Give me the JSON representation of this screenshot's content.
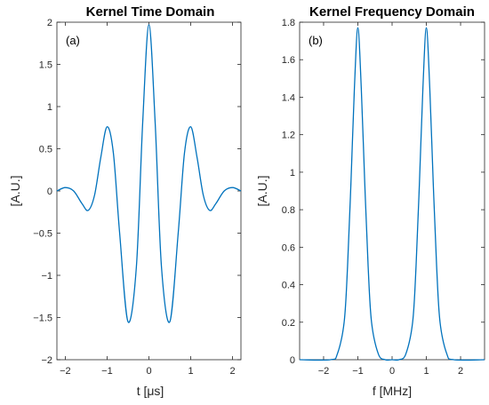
{
  "chart_data": [
    {
      "type": "line",
      "title": "Kernel Time Domain",
      "panel_label": "(a)",
      "xlabel": "t [μs]",
      "ylabel": "[A.U.]",
      "xlim": [
        -2.2,
        2.2
      ],
      "ylim": [
        -2,
        2
      ],
      "x_ticks": [
        "−2",
        "−1",
        "0",
        "1",
        "2"
      ],
      "y_ticks": [
        "−2",
        "−1.5",
        "−1",
        "−0.5",
        "0",
        "0.5",
        "1",
        "1.5",
        "2"
      ],
      "grid": false,
      "color": "#0072BD",
      "x": [
        -2.2,
        -2.0,
        -1.8,
        -1.6,
        -1.45,
        -1.3,
        -1.15,
        -1.0,
        -0.85,
        -0.7,
        -0.5,
        -0.3,
        -0.15,
        0.0,
        0.15,
        0.3,
        0.5,
        0.7,
        0.85,
        1.0,
        1.15,
        1.3,
        1.45,
        1.6,
        1.8,
        2.0,
        2.2
      ],
      "y": [
        0.0,
        0.04,
        0.0,
        -0.15,
        -0.23,
        -0.05,
        0.4,
        0.76,
        0.45,
        -0.5,
        -1.55,
        -0.9,
        0.8,
        1.97,
        0.8,
        -0.9,
        -1.55,
        -0.5,
        0.45,
        0.76,
        0.4,
        -0.05,
        -0.23,
        -0.15,
        0.0,
        0.04,
        0.0
      ]
    },
    {
      "type": "line",
      "title": "Kernel Frequency Domain",
      "panel_label": "(b)",
      "xlabel": "f [MHz]",
      "ylabel": "[A.U.]",
      "xlim": [
        -2.7,
        2.7
      ],
      "ylim": [
        0,
        1.8
      ],
      "x_ticks": [
        "−2",
        "−1",
        "0",
        "1",
        "2"
      ],
      "y_ticks": [
        "0",
        "0.2",
        "0.4",
        "0.6",
        "0.8",
        "1",
        "1.2",
        "1.4",
        "1.6",
        "1.8"
      ],
      "grid": false,
      "color": "#0072BD",
      "x": [
        -2.7,
        -1.8,
        -1.6,
        -1.4,
        -1.3,
        -1.2,
        -1.1,
        -1.0,
        -0.9,
        -0.8,
        -0.7,
        -0.6,
        -0.4,
        -0.2,
        0.0,
        0.2,
        0.4,
        0.6,
        0.7,
        0.8,
        0.9,
        1.0,
        1.1,
        1.2,
        1.3,
        1.4,
        1.6,
        1.8,
        2.7
      ],
      "y": [
        0.0,
        0.0,
        0.03,
        0.2,
        0.5,
        0.95,
        1.45,
        1.77,
        1.45,
        0.95,
        0.5,
        0.2,
        0.03,
        0.0,
        0.0,
        0.0,
        0.03,
        0.2,
        0.5,
        0.95,
        1.45,
        1.77,
        1.45,
        0.95,
        0.5,
        0.2,
        0.03,
        0.0,
        0.0
      ]
    }
  ]
}
